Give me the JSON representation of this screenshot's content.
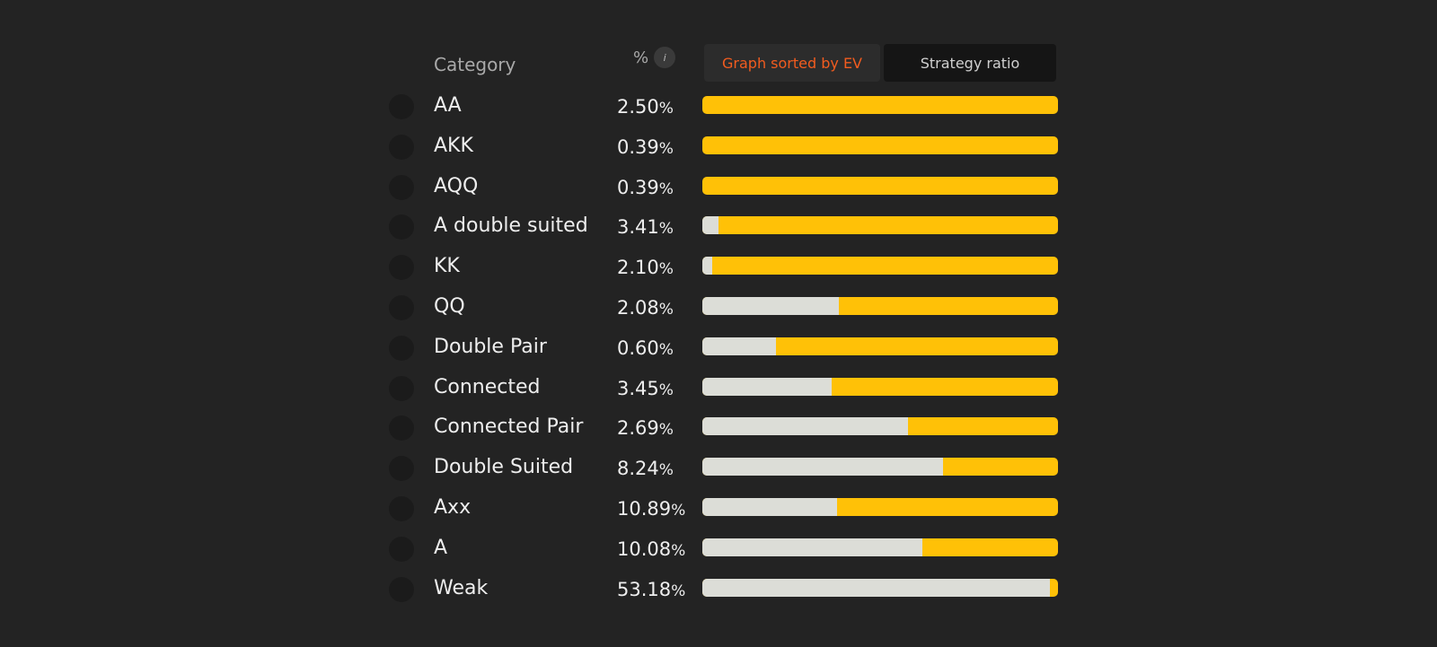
{
  "header": {
    "category_label": "Category",
    "percent_label": "%",
    "info_icon": "info-icon",
    "tabs": [
      {
        "label": "Graph sorted by EV",
        "active": true
      },
      {
        "label": "Strategy ratio",
        "active": false
      }
    ]
  },
  "colors": {
    "background": "#232323",
    "bar_primary": "#ffc107",
    "bar_secondary": "#dcddd7",
    "active_tab_text": "#f25c1f"
  },
  "rows": [
    {
      "label": "AA",
      "percent": "2.50",
      "other_fraction": 0.0
    },
    {
      "label": "AKK",
      "percent": "0.39",
      "other_fraction": 0.0
    },
    {
      "label": "AQQ",
      "percent": "0.39",
      "other_fraction": 0.0
    },
    {
      "label": "A double suited",
      "percent": "3.41",
      "other_fraction": 0.045
    },
    {
      "label": "KK",
      "percent": "2.10",
      "other_fraction": 0.028
    },
    {
      "label": "QQ",
      "percent": "2.08",
      "other_fraction": 0.385
    },
    {
      "label": "Double Pair",
      "percent": "0.60",
      "other_fraction": 0.207
    },
    {
      "label": "Connected",
      "percent": "3.45",
      "other_fraction": 0.363
    },
    {
      "label": "Connected Pair",
      "percent": "2.69",
      "other_fraction": 0.578
    },
    {
      "label": "Double Suited",
      "percent": "8.24",
      "other_fraction": 0.677
    },
    {
      "label": "Axx",
      "percent": "10.89",
      "other_fraction": 0.378
    },
    {
      "label": "A",
      "percent": "10.08",
      "other_fraction": 0.618
    },
    {
      "label": "Weak",
      "percent": "53.18",
      "other_fraction": 0.977
    }
  ],
  "percent_unit": "%"
}
